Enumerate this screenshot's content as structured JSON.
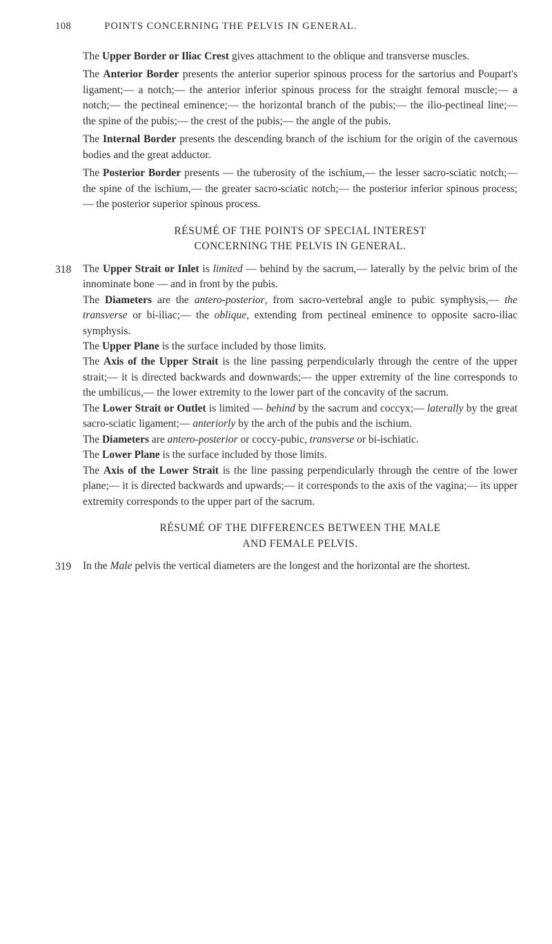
{
  "header": {
    "page_number": "108",
    "running_title": "POINTS CONCERNING THE PELVIS IN GENERAL."
  },
  "paragraphs": {
    "p1_a": "The ",
    "p1_b": "Upper Border or Iliac Crest",
    "p1_c": " gives attachment to the oblique and transverse muscles.",
    "p2_a": "The ",
    "p2_b": "Anterior Border",
    "p2_c": " presents the anterior superior spinous process for the sartorius and Poupart's ligament;— a notch;— the anterior inferior spinous process for the straight femoral muscle;— a notch;— the pectineal eminence;— the horizontal branch of the pubis;— the ilio-pectineal line;— the spine of the pubis;— the crest of the pubis;— the angle of the pubis.",
    "p3_a": "The ",
    "p3_b": "Internal Border",
    "p3_c": " presents the descending branch of the ischium for the origin of the cavernous bodies and the great adductor.",
    "p4_a": "The ",
    "p4_b": "Posterior Border",
    "p4_c": " presents — the tuberosity of the ischium,— the lesser sacro-sciatic notch;— the spine of the ischium,— the greater sacro-sciatic notch;— the posterior inferior spinous process;— the posterior superior spinous process.",
    "heading1_a": "RÉSUMÉ OF THE POINTS OF SPECIAL INTEREST",
    "heading1_b": "CONCERNING THE PELVIS IN GENERAL.",
    "n318": "318",
    "p5_a": "The ",
    "p5_b": "Upper Strait or Inlet",
    "p5_c": " is ",
    "p5_d": "limited",
    "p5_e": " — behind by the sacrum,— laterally by the pelvic brim of the innominate bone — and in front by the pubis.",
    "p6_a": "The ",
    "p6_b": "Diameters",
    "p6_c": " are the ",
    "p6_d": "antero-posterior",
    "p6_e": ", from sacro-vertebral angle to pubic symphysis,— ",
    "p6_f": "the transverse",
    "p6_g": " or bi-iliac;— the ",
    "p6_h": "oblique",
    "p6_i": ", extending from pectineal eminence to opposite sacro-iliac symphysis.",
    "p7_a": "The ",
    "p7_b": "Upper Plane",
    "p7_c": " is the surface included by those limits.",
    "p8_a": "The ",
    "p8_b": "Axis of the Upper Strait",
    "p8_c": " is the line passing perpendicularly through the centre of the upper strait;— it is directed backwards and downwards;— the upper extremity of the line corresponds to the umbilicus,— the lower extremity to the lower part of the concavity of the sacrum.",
    "p9_a": "The ",
    "p9_b": "Lower Strait or Outlet",
    "p9_c": " is limited — ",
    "p9_d": "behind",
    "p9_e": " by the sacrum and coccyx;— ",
    "p9_f": "laterally",
    "p9_g": " by the great sacro-sciatic ligament;— ",
    "p9_h": "anteriorly",
    "p9_i": " by the arch of the pubis and the ischium.",
    "p10_a": "The ",
    "p10_b": "Diameters",
    "p10_c": " are ",
    "p10_d": "antero-posterior",
    "p10_e": " or coccy-pubic, ",
    "p10_f": "transverse",
    "p10_g": " or bi-ischiatic.",
    "p11_a": "The ",
    "p11_b": "Lower Plane",
    "p11_c": " is the surface included by those limits.",
    "p12_a": "The ",
    "p12_b": "Axis of the Lower Strait",
    "p12_c": " is the line passing perpendicularly through the centre of the lower plane;— it is directed backwards and upwards;— it corresponds to the axis of the vagina;— its upper extremity corresponds to the upper part of the sacrum.",
    "heading2_a": "RÉSUMÉ OF THE DIFFERENCES BETWEEN THE MALE",
    "heading2_b": "AND FEMALE PELVIS.",
    "n319": "319",
    "p13_a": "In the ",
    "p13_b": "Male",
    "p13_c": " pelvis the vertical diameters are the longest and the horizontal are the shortest."
  }
}
